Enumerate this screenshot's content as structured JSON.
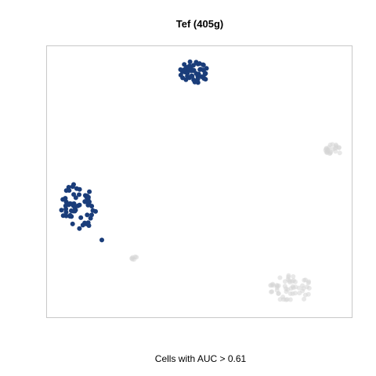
{
  "chart_data": {
    "type": "scatter",
    "title": "Tef (405g)",
    "caption": "Cells with AUC > 0.61",
    "xlabel": "",
    "ylabel": "",
    "xlim": [
      0,
      100
    ],
    "ylim": [
      0,
      100
    ],
    "grid": false,
    "axes_ticks": false,
    "colors": {
      "selected": "#1a3d7a",
      "unselected": "#d6d6d6",
      "frame": "#c8c8c8"
    },
    "clusters": [
      {
        "name": "",
        "selected": true,
        "center": [
          48.5,
          90.5
        ],
        "spread": [
          4.8,
          4.2
        ],
        "count": 48
      },
      {
        "name": "",
        "selected": true,
        "center": [
          10.5,
          41.0
        ],
        "spread": [
          6.0,
          8.6
        ],
        "count": 62
      },
      {
        "name": "",
        "selected": false,
        "center": [
          93.5,
          61.5
        ],
        "spread": [
          2.8,
          2.4
        ],
        "count": 24
      },
      {
        "name": "",
        "selected": false,
        "center": [
          28.5,
          22.0
        ],
        "spread": [
          1.4,
          0.8
        ],
        "count": 6
      },
      {
        "name": "",
        "selected": false,
        "center": [
          80.0,
          10.5
        ],
        "spread": [
          7.0,
          5.0
        ],
        "count": 55
      }
    ],
    "outliers": [
      {
        "x": 18.0,
        "y": 28.5,
        "selected": true
      }
    ]
  }
}
